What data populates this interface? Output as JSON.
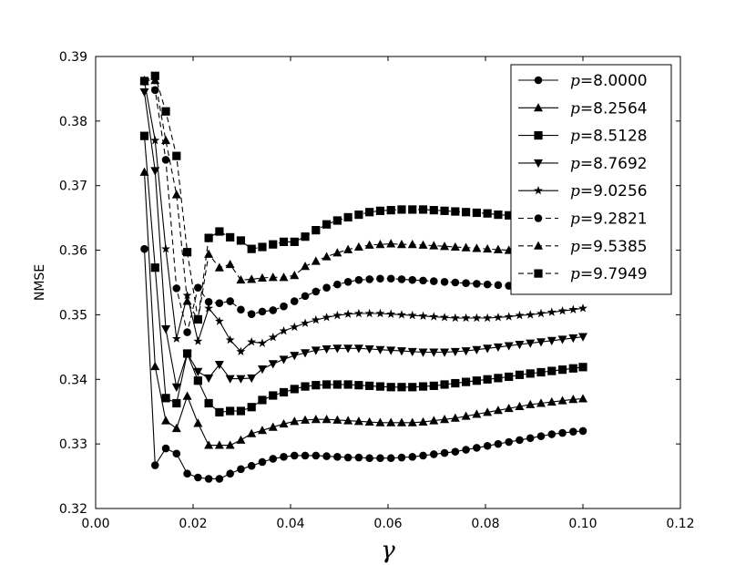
{
  "chart_data": {
    "type": "line",
    "title": "",
    "xlabel": "γ",
    "ylabel": "NMSE",
    "xlim": [
      0.0,
      0.12
    ],
    "ylim": [
      0.32,
      0.39
    ],
    "xticks": [
      0.0,
      0.02,
      0.04,
      0.06,
      0.08,
      0.1,
      0.12
    ],
    "xtick_labels": [
      "0.00",
      "0.02",
      "0.04",
      "0.06",
      "0.08",
      "0.10",
      "0.12"
    ],
    "yticks": [
      0.32,
      0.33,
      0.34,
      0.35,
      0.36,
      0.37,
      0.38,
      0.39
    ],
    "ytick_labels": [
      "0.32",
      "0.33",
      "0.34",
      "0.35",
      "0.36",
      "0.37",
      "0.38",
      "0.39"
    ],
    "grid": false,
    "legend_position": "top-right",
    "legend_var": "p",
    "x": [
      0.01,
      0.0122,
      0.0144,
      0.0166,
      0.0188,
      0.021,
      0.0232,
      0.0254,
      0.0276,
      0.0298,
      0.032,
      0.0342,
      0.0364,
      0.0386,
      0.0408,
      0.043,
      0.0452,
      0.0474,
      0.0496,
      0.0518,
      0.054,
      0.0562,
      0.0584,
      0.0606,
      0.0628,
      0.065,
      0.0672,
      0.0694,
      0.0716,
      0.0738,
      0.076,
      0.0782,
      0.0804,
      0.0826,
      0.0848,
      0.087,
      0.0892,
      0.0914,
      0.0936,
      0.0958,
      0.098,
      0.1
    ],
    "series": [
      {
        "name": "=8.0000",
        "marker": "circle",
        "dash": "solid",
        "values": [
          0.3602,
          0.3267,
          0.3293,
          0.3285,
          0.3254,
          0.3248,
          0.3246,
          0.3246,
          0.3254,
          0.3261,
          0.3266,
          0.3272,
          0.3277,
          0.328,
          0.3282,
          0.3282,
          0.3282,
          0.3281,
          0.328,
          0.3279,
          0.3279,
          0.3278,
          0.3278,
          0.3278,
          0.3279,
          0.328,
          0.3282,
          0.3284,
          0.3286,
          0.3288,
          0.3291,
          0.3294,
          0.3297,
          0.33,
          0.3303,
          0.3306,
          0.3309,
          0.3312,
          0.3315,
          0.3317,
          0.3319,
          0.332
        ]
      },
      {
        "name": "=8.2564",
        "marker": "triangle-up",
        "dash": "solid",
        "values": [
          0.3721,
          0.342,
          0.3336,
          0.3324,
          0.3374,
          0.3332,
          0.3298,
          0.3298,
          0.3298,
          0.3306,
          0.3316,
          0.3321,
          0.3326,
          0.3331,
          0.3335,
          0.3337,
          0.3338,
          0.3338,
          0.3337,
          0.3336,
          0.3335,
          0.3334,
          0.3333,
          0.3333,
          0.3333,
          0.3333,
          0.3334,
          0.3336,
          0.3338,
          0.334,
          0.3343,
          0.3346,
          0.3349,
          0.3352,
          0.3355,
          0.3358,
          0.3361,
          0.3363,
          0.3365,
          0.3367,
          0.3369,
          0.337
        ]
      },
      {
        "name": "=8.5128",
        "marker": "square",
        "dash": "solid",
        "values": [
          0.3777,
          0.3573,
          0.3371,
          0.3363,
          0.344,
          0.3398,
          0.3363,
          0.3349,
          0.3351,
          0.3351,
          0.3357,
          0.3368,
          0.3375,
          0.338,
          0.3385,
          0.3389,
          0.3391,
          0.3392,
          0.3392,
          0.3392,
          0.3391,
          0.339,
          0.3389,
          0.3388,
          0.3388,
          0.3388,
          0.3389,
          0.339,
          0.3392,
          0.3394,
          0.3396,
          0.3398,
          0.34,
          0.3402,
          0.3404,
          0.3407,
          0.3409,
          0.3411,
          0.3413,
          0.3415,
          0.3417,
          0.3419
        ]
      },
      {
        "name": "=8.7692",
        "marker": "triangle-down",
        "dash": "solid",
        "values": [
          0.3845,
          0.3723,
          0.3478,
          0.3388,
          0.344,
          0.3412,
          0.3402,
          0.3423,
          0.3401,
          0.3401,
          0.3402,
          0.3416,
          0.3424,
          0.3431,
          0.3437,
          0.3441,
          0.3445,
          0.3447,
          0.3448,
          0.3448,
          0.3448,
          0.3447,
          0.3446,
          0.3445,
          0.3444,
          0.3443,
          0.3442,
          0.3442,
          0.3442,
          0.3443,
          0.3444,
          0.3446,
          0.3448,
          0.345,
          0.3452,
          0.3454,
          0.3456,
          0.3458,
          0.346,
          0.3462,
          0.3464,
          0.3466
        ]
      },
      {
        "name": "=9.0256",
        "marker": "star",
        "dash": "solid",
        "values": [
          0.3862,
          0.377,
          0.3602,
          0.3463,
          0.353,
          0.3459,
          0.351,
          0.349,
          0.3461,
          0.3443,
          0.3458,
          0.3456,
          0.3465,
          0.3475,
          0.3481,
          0.3487,
          0.3492,
          0.3496,
          0.3499,
          0.3501,
          0.3502,
          0.3502,
          0.3502,
          0.3501,
          0.35,
          0.3499,
          0.3498,
          0.3497,
          0.3496,
          0.3495,
          0.3495,
          0.3495,
          0.3495,
          0.3496,
          0.3497,
          0.3499,
          0.35,
          0.3502,
          0.3504,
          0.3506,
          0.3508,
          0.351
        ]
      },
      {
        "name": "=9.2821",
        "marker": "circle",
        "dash": "dashed",
        "values": [
          0.3861,
          0.3848,
          0.374,
          0.3541,
          0.3473,
          0.3542,
          0.352,
          0.3518,
          0.3521,
          0.3508,
          0.3501,
          0.3505,
          0.3507,
          0.3513,
          0.3521,
          0.3529,
          0.3536,
          0.3542,
          0.3547,
          0.3551,
          0.3554,
          0.3555,
          0.3556,
          0.3556,
          0.3555,
          0.3554,
          0.3553,
          0.3552,
          0.3551,
          0.355,
          0.3549,
          0.3548,
          0.3547,
          0.3546,
          0.3545,
          0.3545,
          0.3545,
          0.3545,
          0.3546,
          0.3547,
          0.3548,
          0.3549
        ]
      },
      {
        "name": "=9.5385",
        "marker": "triangle-up",
        "dash": "dashed",
        "values": [
          0.3863,
          0.3863,
          0.377,
          0.3686,
          0.3521,
          0.3492,
          0.3594,
          0.3573,
          0.3578,
          0.3554,
          0.3555,
          0.3557,
          0.3558,
          0.3558,
          0.3561,
          0.3575,
          0.3583,
          0.359,
          0.3596,
          0.3601,
          0.3605,
          0.3608,
          0.3609,
          0.361,
          0.3609,
          0.3609,
          0.3608,
          0.3607,
          0.3606,
          0.3605,
          0.3604,
          0.3603,
          0.3602,
          0.3601,
          0.36,
          0.36,
          0.3599,
          0.3599,
          0.3599,
          0.3599,
          0.3599,
          0.3599
        ]
      },
      {
        "name": "=9.7949",
        "marker": "square",
        "dash": "dashed",
        "values": [
          0.3862,
          0.387,
          0.3815,
          0.3746,
          0.3597,
          0.3493,
          0.3619,
          0.3629,
          0.362,
          0.3615,
          0.3602,
          0.3605,
          0.3609,
          0.3613,
          0.3613,
          0.3621,
          0.3631,
          0.364,
          0.3646,
          0.3651,
          0.3655,
          0.3659,
          0.3661,
          0.3662,
          0.3663,
          0.3663,
          0.3663,
          0.3662,
          0.3661,
          0.366,
          0.3659,
          0.3658,
          0.3657,
          0.3655,
          0.3654,
          0.3653,
          0.3652,
          0.3651,
          0.365,
          0.3649,
          0.3648,
          0.3647
        ]
      }
    ]
  }
}
